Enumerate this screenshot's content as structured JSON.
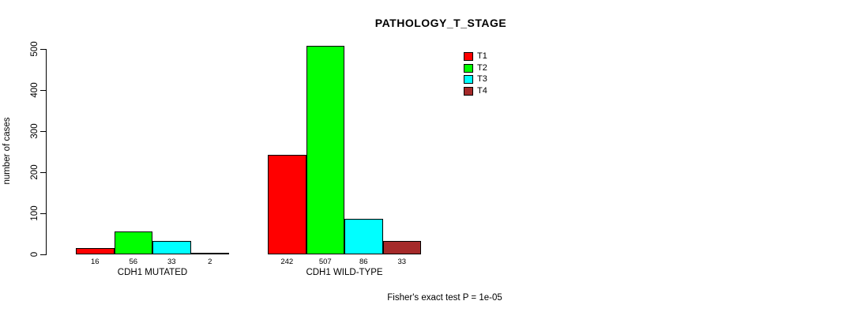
{
  "chart_data": {
    "type": "bar",
    "title": "PATHOLOGY_T_STAGE",
    "ylabel": "number of cases",
    "xlabel": "",
    "ylim": [
      0,
      500
    ],
    "y_ticks": [
      0,
      100,
      200,
      300,
      400,
      500
    ],
    "grid": false,
    "legend_position": "top-right",
    "bar_value_labels": true,
    "categories": [
      "CDH1 MUTATED",
      "CDH1 WILD-TYPE"
    ],
    "series": [
      {
        "name": "T1",
        "color": "#ff0000",
        "values": [
          16,
          242
        ]
      },
      {
        "name": "T2",
        "color": "#00ff00",
        "values": [
          56,
          507
        ]
      },
      {
        "name": "T3",
        "color": "#00ffff",
        "values": [
          33,
          86
        ]
      },
      {
        "name": "T4",
        "color": "#a52a2a",
        "values": [
          2,
          33
        ]
      }
    ],
    "annotation": "Fisher's exact test P = 1e-05"
  },
  "colors": {
    "axis": "#000000",
    "background": "#ffffff",
    "text": "#000000"
  }
}
